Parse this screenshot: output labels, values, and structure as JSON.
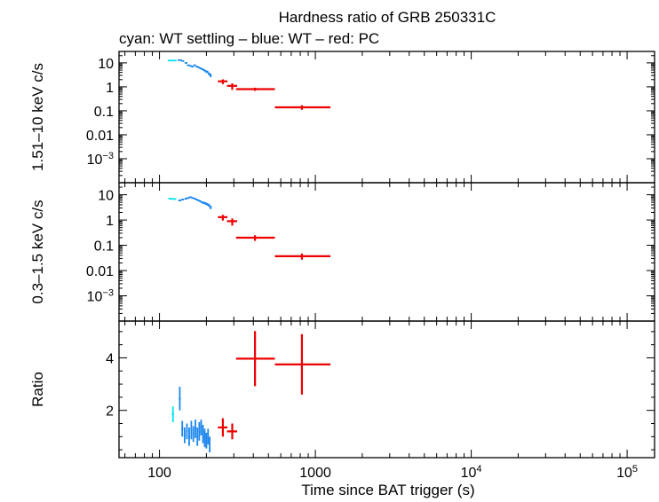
{
  "chart_data": {
    "type": "scatter",
    "title": "Hardness ratio of GRB 250331C",
    "subtitle": "cyan: WT settling – blue: WT – red: PC",
    "xlabel": "Time since BAT trigger (s)",
    "x_scale": "log",
    "xlim": [
      55,
      150000
    ],
    "x_ticks": [
      {
        "value": 100,
        "label": "100",
        "sup": ""
      },
      {
        "value": 1000,
        "label": "1000",
        "sup": ""
      },
      {
        "value": 10000,
        "label": "10",
        "sup": "4"
      },
      {
        "value": 100000,
        "label": "10",
        "sup": "5"
      }
    ],
    "colors": {
      "wt_settling": "#00e5ee",
      "wt": "#1c86ee",
      "pc": "#ee0000",
      "axis": "#000000"
    },
    "panels": [
      {
        "id": "hard",
        "ylabel": "1.51–10 keV c/s",
        "y_scale": "log",
        "ylim": [
          0.0001,
          30
        ],
        "y_ticks": [
          {
            "value": 10,
            "label": "10",
            "sup": ""
          },
          {
            "value": 1,
            "label": "1",
            "sup": ""
          },
          {
            "value": 0.1,
            "label": "0.1",
            "sup": ""
          },
          {
            "value": 0.01,
            "label": "0.01",
            "sup": ""
          },
          {
            "value": 0.001,
            "label": "10",
            "sup": "−3"
          }
        ],
        "series": [
          {
            "mode": "wt_settling",
            "points": [
              [
                118,
                12.5,
                5,
                5,
                0.6,
                0.6
              ],
              [
                125,
                12.5,
                4,
                4,
                0.6,
                0.6
              ]
            ]
          },
          {
            "mode": "wt",
            "points": [
              [
                135,
                13,
                4,
                4,
                0.6,
                0.6
              ],
              [
                141,
                12,
                3,
                3,
                0.6,
                0.6
              ],
              [
                148,
                10,
                3,
                3,
                0.6,
                0.6
              ],
              [
                153,
                8,
                3,
                3,
                0.5,
                0.5
              ],
              [
                158,
                7.5,
                3,
                3,
                0.5,
                0.5
              ],
              [
                163,
                7,
                3,
                3,
                0.5,
                0.5
              ],
              [
                168,
                8,
                3,
                3,
                0.5,
                0.5
              ],
              [
                173,
                7,
                3,
                3,
                0.5,
                0.5
              ],
              [
                178,
                6.5,
                3,
                3,
                0.5,
                0.5
              ],
              [
                183,
                6,
                3,
                3,
                0.5,
                0.5
              ],
              [
                188,
                5.5,
                3,
                3,
                0.5,
                0.5
              ],
              [
                193,
                5,
                3,
                3,
                0.5,
                0.5
              ],
              [
                198,
                4.5,
                3,
                3,
                0.5,
                0.5
              ],
              [
                203,
                4.2,
                3,
                3,
                0.5,
                0.5
              ],
              [
                208,
                3.5,
                3,
                3,
                0.5,
                0.5
              ],
              [
                213,
                3,
                3,
                3,
                0.5,
                0.5
              ]
            ]
          },
          {
            "mode": "pc",
            "points": [
              [
                255,
                1.7,
                18,
                18,
                0.4,
                0.35
              ],
              [
                293,
                1.1,
                22,
                22,
                0.35,
                0.3
              ],
              [
                410,
                0.8,
                100,
                140,
                0.12,
                0.12
              ],
              [
                820,
                0.14,
                270,
                430,
                0.03,
                0.03
              ]
            ]
          }
        ]
      },
      {
        "id": "soft",
        "ylabel": "0.3–1.5 keV c/s",
        "y_scale": "log",
        "ylim": [
          0.0001,
          30
        ],
        "y_ticks": [
          {
            "value": 10,
            "label": "10",
            "sup": ""
          },
          {
            "value": 1,
            "label": "1",
            "sup": ""
          },
          {
            "value": 0.1,
            "label": "0.1",
            "sup": ""
          },
          {
            "value": 0.01,
            "label": "0.01",
            "sup": ""
          },
          {
            "value": 0.001,
            "label": "10",
            "sup": "−3"
          }
        ],
        "series": [
          {
            "mode": "wt_settling",
            "points": [
              [
                118,
                7,
                4,
                4,
                0.5,
                0.5
              ],
              [
                125,
                6.8,
                3,
                3,
                0.5,
                0.5
              ]
            ]
          },
          {
            "mode": "wt",
            "points": [
              [
                135,
                6,
                3,
                3,
                0.5,
                0.5
              ],
              [
                141,
                6.5,
                3,
                3,
                0.5,
                0.5
              ],
              [
                148,
                7,
                3,
                3,
                0.5,
                0.5
              ],
              [
                153,
                7.5,
                3,
                3,
                0.5,
                0.5
              ],
              [
                158,
                8,
                3,
                3,
                0.5,
                0.5
              ],
              [
                163,
                7.5,
                3,
                3,
                0.5,
                0.5
              ],
              [
                168,
                7,
                3,
                3,
                0.5,
                0.5
              ],
              [
                173,
                6.5,
                3,
                3,
                0.5,
                0.5
              ],
              [
                178,
                6,
                3,
                3,
                0.5,
                0.5
              ],
              [
                183,
                5.5,
                3,
                3,
                0.5,
                0.5
              ],
              [
                188,
                5,
                3,
                3,
                0.5,
                0.5
              ],
              [
                193,
                4.8,
                3,
                3,
                0.5,
                0.5
              ],
              [
                198,
                4.5,
                3,
                3,
                0.5,
                0.5
              ],
              [
                203,
                4.2,
                3,
                3,
                0.5,
                0.5
              ],
              [
                208,
                3.8,
                3,
                3,
                0.5,
                0.5
              ],
              [
                213,
                3.2,
                3,
                3,
                0.5,
                0.5
              ]
            ]
          },
          {
            "mode": "pc",
            "points": [
              [
                255,
                1.3,
                18,
                18,
                0.35,
                0.3
              ],
              [
                293,
                0.9,
                22,
                22,
                0.3,
                0.25
              ],
              [
                410,
                0.2,
                100,
                140,
                0.05,
                0.05
              ],
              [
                820,
                0.037,
                270,
                430,
                0.01,
                0.01
              ]
            ]
          }
        ]
      },
      {
        "id": "ratio",
        "ylabel": "Ratio",
        "y_scale": "linear",
        "ylim": [
          0.2,
          5.4
        ],
        "y_ticks": [
          {
            "value": 2,
            "label": "2",
            "sup": ""
          },
          {
            "value": 4,
            "label": "4",
            "sup": ""
          }
        ],
        "series": [
          {
            "mode": "wt_settling",
            "points": [
              [
                122,
                1.85,
                2,
                2,
                0.3,
                0.3
              ]
            ]
          },
          {
            "mode": "wt",
            "points": [
              [
                135,
                2.45,
                2,
                2,
                0.45,
                0.45
              ],
              [
                140,
                1.3,
                2,
                2,
                0.3,
                0.3
              ],
              [
                145,
                1.05,
                2,
                2,
                0.3,
                0.3
              ],
              [
                150,
                1.2,
                2,
                2,
                0.3,
                0.3
              ],
              [
                155,
                1.0,
                2,
                2,
                0.35,
                0.35
              ],
              [
                160,
                1.25,
                2,
                2,
                0.35,
                0.35
              ],
              [
                165,
                1.1,
                2,
                2,
                0.3,
                0.3
              ],
              [
                170,
                1.3,
                2,
                2,
                0.35,
                0.35
              ],
              [
                175,
                1.0,
                2,
                2,
                0.35,
                0.35
              ],
              [
                180,
                1.2,
                2,
                2,
                0.35,
                0.35
              ],
              [
                185,
                1.35,
                2,
                2,
                0.3,
                0.3
              ],
              [
                190,
                1.1,
                2,
                2,
                0.35,
                0.35
              ],
              [
                195,
                0.95,
                2,
                2,
                0.35,
                0.35
              ],
              [
                200,
                0.85,
                2,
                2,
                0.3,
                0.3
              ],
              [
                205,
                1.0,
                2,
                2,
                0.3,
                0.3
              ],
              [
                210,
                0.7,
                2,
                2,
                0.3,
                0.3
              ]
            ]
          },
          {
            "mode": "pc",
            "points": [
              [
                255,
                1.35,
                18,
                18,
                0.35,
                0.35
              ],
              [
                293,
                1.2,
                22,
                22,
                0.3,
                0.3
              ],
              [
                410,
                3.97,
                100,
                140,
                1.05,
                1.05
              ],
              [
                820,
                3.75,
                270,
                430,
                1.15,
                1.15
              ]
            ]
          }
        ]
      }
    ]
  }
}
